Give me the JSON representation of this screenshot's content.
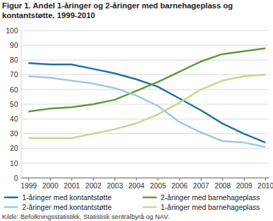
{
  "chart_data": {
    "type": "line",
    "title": [
      "Figur 1. Andel 1-åringer og 2-åringer med barnehageplass og",
      "kontantstøtte. 1999-2010"
    ],
    "source": "Kilde: Befolkningsstatistikk, Statistisk sentralbyrå og NAV.",
    "categories": [
      "1999",
      "2000",
      "2001",
      "2002",
      "2003",
      "2004",
      "2005",
      "2006",
      "2007",
      "2008",
      "2009",
      "2010"
    ],
    "series": [
      {
        "name": "1-åringer med kontantstøtte",
        "color": "#1f6ea6",
        "values": [
          78,
          77,
          77,
          74,
          71,
          67,
          62,
          54,
          46,
          37,
          30,
          24
        ]
      },
      {
        "name": "2-åringer med barnehageplass",
        "color": "#5b9a3a",
        "values": [
          45,
          47,
          48,
          50,
          53,
          59,
          65,
          72,
          79,
          84,
          86,
          88
        ]
      },
      {
        "name": "2-åringer med kontantstøtte",
        "color": "#9cc8e3",
        "values": [
          69,
          68,
          66,
          64,
          61,
          56,
          49,
          38,
          31,
          25,
          24,
          21
        ]
      },
      {
        "name": "1-åringer med barnehageplass",
        "color": "#bcdb8e",
        "values": [
          27,
          27,
          27,
          30,
          33,
          37,
          43,
          51,
          60,
          66,
          69,
          70
        ]
      }
    ],
    "ylim": [
      0,
      100
    ],
    "yticks": [
      0,
      10,
      20,
      30,
      40,
      50,
      60,
      70,
      80,
      90,
      100
    ],
    "grid": true,
    "legend": "bottom"
  }
}
